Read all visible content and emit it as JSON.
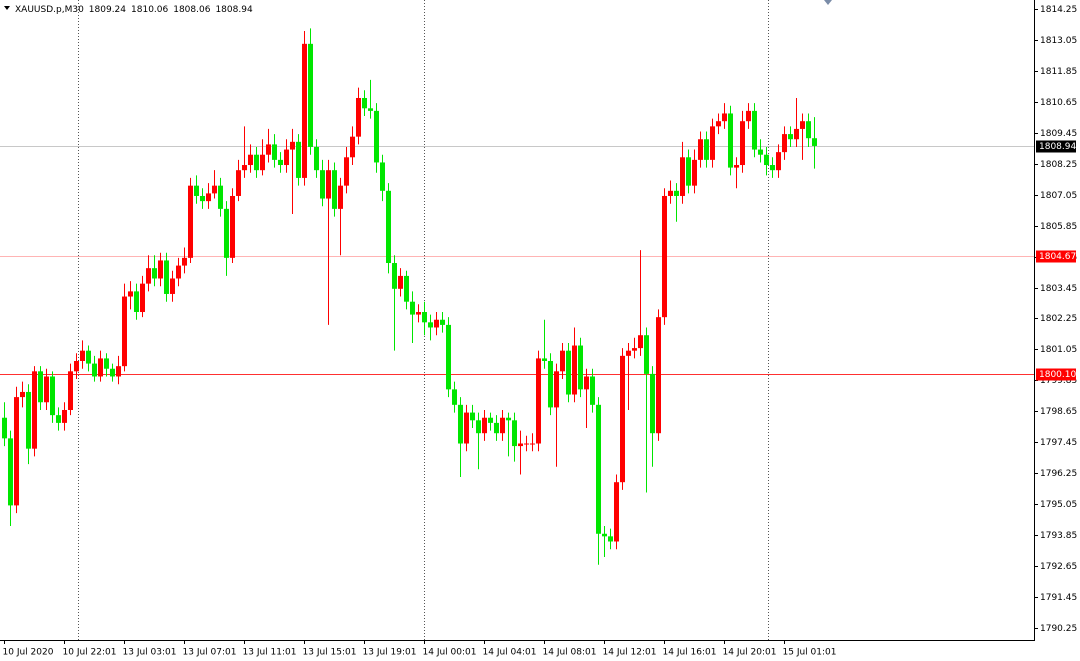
{
  "chart_data": {
    "type": "candlestick",
    "title": "XAUUSD.p,M30",
    "header_values": [
      1809.24,
      1810.06,
      1808.06,
      1808.94
    ],
    "up_color": "#ff0000",
    "down_color": "#00e600",
    "ylim": [
      1789.78,
      1814.6
    ],
    "yticks": [
      1814.25,
      1813.05,
      1811.85,
      1810.65,
      1809.45,
      1808.25,
      1807.05,
      1805.85,
      1804.65,
      1803.45,
      1802.25,
      1801.05,
      1799.85,
      1798.65,
      1797.45,
      1796.25,
      1795.05,
      1793.85,
      1792.65,
      1791.45,
      1790.25
    ],
    "price_lines": [
      {
        "level": 1808.94,
        "color": "#c8c8c8",
        "tag_color": "#000000"
      },
      {
        "level": 1804.67,
        "color": "#ffb4b4",
        "tag_color": "#ff0000"
      },
      {
        "level": {
          "value": 1800.1,
          "label": "1800.10"
        },
        "color": "#ff3030",
        "tag_color": "#ff0000"
      }
    ],
    "categories": [
      "10 Jul 2020",
      null,
      null,
      null,
      null,
      null,
      null,
      null,
      null,
      null,
      "10 Jul 22:01",
      null,
      null,
      null,
      null,
      null,
      null,
      null,
      null,
      null,
      "13 Jul 03:01",
      null,
      null,
      null,
      null,
      null,
      null,
      null,
      null,
      null,
      "13 Jul 07:01",
      null,
      null,
      null,
      null,
      null,
      null,
      null,
      null,
      null,
      "13 Jul 11:01",
      null,
      null,
      null,
      null,
      null,
      null,
      null,
      null,
      null,
      "13 Jul 15:01",
      null,
      null,
      null,
      null,
      null,
      null,
      null,
      null,
      null,
      "13 Jul 19:01",
      null,
      null,
      null,
      null,
      null,
      null,
      null,
      null,
      null,
      "14 Jul 00:01",
      null,
      null,
      null,
      null,
      null,
      null,
      null,
      null,
      null,
      "14 Jul 04:01",
      null,
      null,
      null,
      null,
      null,
      null,
      null,
      null,
      null,
      "14 Jul 08:01",
      null,
      null,
      null,
      null,
      null,
      null,
      null,
      null,
      null,
      "14 Jul 12:01",
      null,
      null,
      null,
      null,
      null,
      null,
      null,
      null,
      null,
      "14 Jul 16:01",
      null,
      null,
      null,
      null,
      null,
      null,
      null,
      null,
      null,
      "14 Jul 20:01",
      null,
      null,
      null,
      null,
      null,
      null,
      null,
      null,
      null,
      "15 Jul 01:01",
      null,
      null,
      null,
      null,
      null
    ],
    "ohlc": [
      [
        1798.4,
        1799.0,
        1797.3,
        1797.6
      ],
      [
        1797.6,
        1797.9,
        1794.2,
        1795.0
      ],
      [
        1795.0,
        1799.6,
        1794.7,
        1799.2
      ],
      [
        1799.2,
        1799.8,
        1798.8,
        1799.4
      ],
      [
        1799.4,
        1799.7,
        1796.6,
        1797.2
      ],
      [
        1797.2,
        1800.4,
        1796.9,
        1800.2
      ],
      [
        1800.2,
        1800.4,
        1798.7,
        1799.0
      ],
      [
        1799.0,
        1800.3,
        1798.7,
        1800.0
      ],
      [
        1800.0,
        1800.2,
        1798.2,
        1798.5
      ],
      [
        1798.5,
        1798.8,
        1797.9,
        1798.2
      ],
      [
        1798.2,
        1799.0,
        1797.9,
        1798.7
      ],
      [
        1798.7,
        1800.5,
        1798.5,
        1800.2
      ],
      [
        1800.2,
        1800.9,
        1799.9,
        1800.6
      ],
      [
        1800.6,
        1801.4,
        1800.3,
        1801.0
      ],
      [
        1801.0,
        1801.2,
        1800.2,
        1800.5
      ],
      [
        1800.5,
        1800.8,
        1799.8,
        1800.0
      ],
      [
        1800.0,
        1801.0,
        1799.8,
        1800.7
      ],
      [
        1800.7,
        1800.9,
        1800.0,
        1800.3
      ],
      [
        1800.3,
        1800.5,
        1799.8,
        1800.0
      ],
      [
        1800.0,
        1800.8,
        1799.7,
        1800.4
      ],
      [
        1800.4,
        1803.6,
        1800.2,
        1803.1
      ],
      [
        1803.1,
        1803.7,
        1802.6,
        1803.3
      ],
      [
        1803.3,
        1803.6,
        1802.2,
        1802.5
      ],
      [
        1802.5,
        1803.9,
        1802.3,
        1803.6
      ],
      [
        1803.6,
        1804.7,
        1803.3,
        1804.2
      ],
      [
        1804.2,
        1804.7,
        1803.5,
        1803.8
      ],
      [
        1803.8,
        1804.8,
        1803.5,
        1804.5
      ],
      [
        1804.5,
        1804.8,
        1802.9,
        1803.2
      ],
      [
        1803.2,
        1804.1,
        1802.9,
        1803.8
      ],
      [
        1803.8,
        1804.6,
        1803.5,
        1804.3
      ],
      [
        1804.3,
        1805.0,
        1804.0,
        1804.6
      ],
      [
        1804.6,
        1807.7,
        1804.4,
        1807.4
      ],
      [
        1807.4,
        1807.8,
        1806.7,
        1807.0
      ],
      [
        1807.0,
        1807.3,
        1806.5,
        1806.8
      ],
      [
        1806.8,
        1807.5,
        1806.5,
        1807.1
      ],
      [
        1807.1,
        1808.0,
        1806.9,
        1807.4
      ],
      [
        1807.4,
        1807.7,
        1806.2,
        1806.5
      ],
      [
        1806.5,
        1806.8,
        1803.9,
        1804.6
      ],
      [
        1804.6,
        1807.3,
        1804.4,
        1807.0
      ],
      [
        1807.0,
        1808.4,
        1806.8,
        1808.0
      ],
      [
        1808.0,
        1809.7,
        1807.7,
        1808.2
      ],
      [
        1808.2,
        1809.0,
        1807.9,
        1808.6
      ],
      [
        1808.6,
        1808.9,
        1807.7,
        1808.0
      ],
      [
        1808.0,
        1809.2,
        1807.8,
        1808.6
      ],
      [
        1808.6,
        1809.6,
        1808.3,
        1809.0
      ],
      [
        1809.0,
        1809.4,
        1808.1,
        1808.4
      ],
      [
        1808.4,
        1808.7,
        1807.9,
        1808.2
      ],
      [
        1808.2,
        1809.2,
        1807.9,
        1808.8
      ],
      [
        1808.8,
        1809.6,
        1806.3,
        1809.1
      ],
      [
        1809.1,
        1809.4,
        1807.4,
        1807.7
      ],
      [
        1807.7,
        1813.4,
        1807.4,
        1812.9
      ],
      [
        1812.9,
        1813.5,
        1808.6,
        1808.9
      ],
      [
        1808.9,
        1809.2,
        1807.7,
        1808.0
      ],
      [
        1808.0,
        1808.4,
        1806.6,
        1806.9
      ],
      [
        1806.9,
        1808.4,
        1802.0,
        1808.0
      ],
      [
        1808.0,
        1808.3,
        1806.2,
        1806.5
      ],
      [
        1806.5,
        1807.7,
        1804.7,
        1807.4
      ],
      [
        1807.4,
        1808.9,
        1807.1,
        1808.5
      ],
      [
        1808.5,
        1809.7,
        1808.2,
        1809.3
      ],
      [
        1809.3,
        1811.2,
        1809.0,
        1810.8
      ],
      [
        1810.8,
        1811.1,
        1810.1,
        1810.4
      ],
      [
        1810.4,
        1811.5,
        1810.0,
        1810.3
      ],
      [
        1810.3,
        1810.6,
        1807.9,
        1808.3
      ],
      [
        1808.3,
        1808.6,
        1806.8,
        1807.2
      ],
      [
        1807.2,
        1807.5,
        1804.0,
        1804.4
      ],
      [
        1804.4,
        1804.7,
        1801.0,
        1803.4
      ],
      [
        1803.4,
        1804.2,
        1803.1,
        1803.9
      ],
      [
        1803.9,
        1804.1,
        1802.6,
        1802.9
      ],
      [
        1802.9,
        1803.3,
        1801.3,
        1802.4
      ],
      [
        1802.4,
        1802.8,
        1802.1,
        1802.5
      ],
      [
        1802.5,
        1802.9,
        1801.6,
        1802.1
      ],
      [
        1802.1,
        1802.4,
        1801.4,
        1801.9
      ],
      [
        1801.9,
        1802.5,
        1801.6,
        1802.2
      ],
      [
        1802.2,
        1802.5,
        1801.7,
        1802.0
      ],
      [
        1802.0,
        1802.3,
        1799.2,
        1799.5
      ],
      [
        1799.5,
        1799.8,
        1798.6,
        1798.9
      ],
      [
        1798.9,
        1799.2,
        1796.1,
        1797.4
      ],
      [
        1797.4,
        1798.9,
        1797.1,
        1798.6
      ],
      [
        1798.6,
        1798.9,
        1798.0,
        1798.3
      ],
      [
        1798.3,
        1798.6,
        1796.4,
        1797.8
      ],
      [
        1797.8,
        1798.7,
        1797.5,
        1798.4
      ],
      [
        1798.4,
        1798.6,
        1797.9,
        1798.2
      ],
      [
        1798.2,
        1798.5,
        1797.5,
        1797.8
      ],
      [
        1797.8,
        1798.7,
        1797.5,
        1798.4
      ],
      [
        1798.4,
        1798.6,
        1796.9,
        1798.3
      ],
      [
        1798.3,
        1798.6,
        1796.7,
        1797.3
      ],
      [
        1797.3,
        1797.9,
        1796.2,
        1797.4
      ],
      [
        1797.4,
        1797.7,
        1797.1,
        1797.4
      ],
      [
        1797.4,
        1797.8,
        1797.1,
        1797.4
      ],
      [
        1797.4,
        1801.0,
        1797.1,
        1800.7
      ],
      [
        1800.7,
        1802.2,
        1800.3,
        1800.6
      ],
      [
        1800.6,
        1800.9,
        1798.5,
        1798.8
      ],
      [
        1798.8,
        1800.5,
        1796.5,
        1800.2
      ],
      [
        1800.2,
        1801.3,
        1799.9,
        1801.0
      ],
      [
        1801.0,
        1801.3,
        1799.0,
        1799.3
      ],
      [
        1799.3,
        1801.9,
        1799.0,
        1801.2
      ],
      [
        1801.2,
        1801.5,
        1799.2,
        1799.5
      ],
      [
        1799.5,
        1800.3,
        1798.0,
        1800.0
      ],
      [
        1800.0,
        1800.3,
        1798.6,
        1798.9
      ],
      [
        1798.9,
        1799.2,
        1792.7,
        1793.9
      ],
      [
        1793.9,
        1794.2,
        1793.0,
        1793.8
      ],
      [
        1793.8,
        1794.1,
        1793.3,
        1793.6
      ],
      [
        1793.6,
        1796.2,
        1793.3,
        1795.9
      ],
      [
        1795.9,
        1801.1,
        1795.6,
        1800.8
      ],
      [
        1800.8,
        1801.3,
        1798.7,
        1801.0
      ],
      [
        1801.0,
        1801.5,
        1800.7,
        1801.1
      ],
      [
        1801.1,
        1804.9,
        1800.8,
        1801.6
      ],
      [
        1801.6,
        1801.9,
        1795.5,
        1800.1
      ],
      [
        1800.1,
        1800.4,
        1796.5,
        1797.8
      ],
      [
        1797.8,
        1802.6,
        1797.5,
        1802.3
      ],
      [
        1802.3,
        1807.3,
        1802.0,
        1807.0
      ],
      [
        1807.0,
        1807.6,
        1806.7,
        1807.2
      ],
      [
        1807.2,
        1807.5,
        1806.0,
        1807.0
      ],
      [
        1807.0,
        1809.1,
        1806.7,
        1808.5
      ],
      [
        1808.5,
        1808.8,
        1807.1,
        1807.4
      ],
      [
        1807.4,
        1808.8,
        1807.1,
        1808.4
      ],
      [
        1808.4,
        1809.5,
        1808.1,
        1809.2
      ],
      [
        1809.2,
        1809.5,
        1808.1,
        1808.4
      ],
      [
        1808.4,
        1810.0,
        1808.1,
        1809.7
      ],
      [
        1809.7,
        1810.2,
        1809.4,
        1809.9
      ],
      [
        1809.9,
        1810.6,
        1809.6,
        1810.2
      ],
      [
        1810.2,
        1810.5,
        1807.8,
        1808.1
      ],
      [
        1808.1,
        1808.5,
        1807.3,
        1808.2
      ],
      [
        1808.2,
        1810.3,
        1807.9,
        1809.9
      ],
      [
        1809.9,
        1810.6,
        1809.6,
        1810.3
      ],
      [
        1810.3,
        1810.6,
        1808.5,
        1808.8
      ],
      [
        1808.8,
        1809.2,
        1808.3,
        1808.6
      ],
      [
        1808.6,
        1808.9,
        1807.8,
        1808.2
      ],
      [
        1808.2,
        1808.5,
        1807.7,
        1808.0
      ],
      [
        1808.0,
        1809.0,
        1807.7,
        1808.7
      ],
      [
        1808.7,
        1809.7,
        1808.4,
        1809.4
      ],
      [
        1809.4,
        1809.7,
        1808.9,
        1809.2
      ],
      [
        1809.2,
        1810.8,
        1808.9,
        1809.6
      ],
      [
        1809.6,
        1810.2,
        1808.4,
        1809.9
      ],
      [
        1809.9,
        1810.2,
        1808.9,
        1809.24
      ],
      [
        1809.24,
        1810.06,
        1808.06,
        1808.94
      ]
    ]
  }
}
